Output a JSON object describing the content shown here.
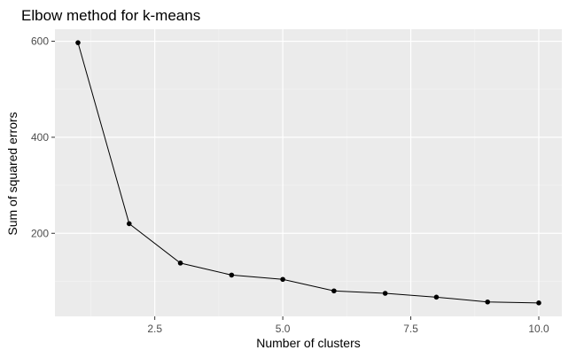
{
  "chart_data": {
    "type": "line",
    "title": "Elbow method for k-means",
    "xlabel": "Number of clusters",
    "ylabel": "Sum of squared errors",
    "x": [
      1,
      2,
      3,
      4,
      5,
      6,
      7,
      8,
      9,
      10
    ],
    "series": [
      {
        "values": [
          597,
          220,
          138,
          113,
          104,
          80,
          75,
          67,
          57,
          55
        ]
      }
    ],
    "xlim": [
      0.55,
      10.45
    ],
    "ylim": [
      27,
      625
    ],
    "xticks": [
      2.5,
      5.0,
      7.5,
      10.0
    ],
    "xtick_labels": [
      "2.5",
      "5.0",
      "7.5",
      "10.0"
    ],
    "yticks": [
      200,
      400,
      600
    ],
    "ytick_labels": [
      "200",
      "400",
      "600"
    ],
    "grid": true,
    "legend": "none"
  },
  "colors": {
    "panel_background": "#ebebeb",
    "grid_major": "#ffffff",
    "grid_minor": "#f2f2f2",
    "line": "#000000",
    "points": "#000000",
    "tick_text": "#4d4d4d"
  }
}
